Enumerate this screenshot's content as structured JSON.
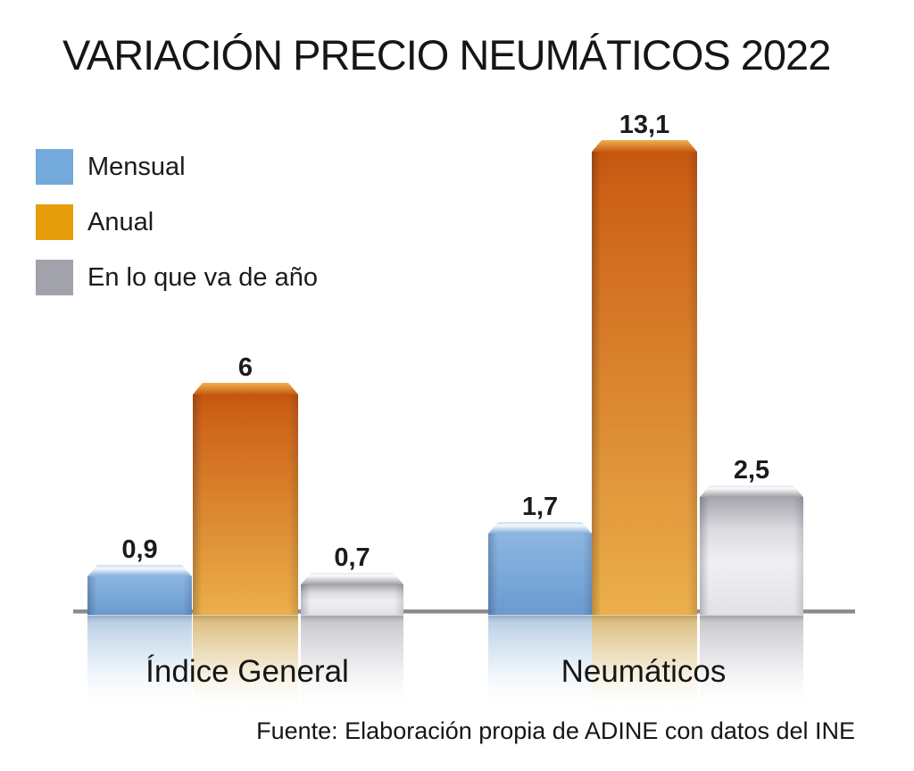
{
  "title": "VARIACIÓN PRECIO NEUMÁTICOS 2022",
  "legend": [
    {
      "label": "Mensual",
      "color": "#74A9DB"
    },
    {
      "label": "Anual",
      "color": "#E59D0B"
    },
    {
      "label": "En lo que va de año",
      "color": "#A2A2AA"
    }
  ],
  "source": "Fuente: Elaboración propia de ADINE con datos del INE",
  "chart_data": {
    "type": "bar",
    "title": "VARIACIÓN PRECIO NEUMÁTICOS 2022",
    "categories": [
      "Índice General",
      "Neumáticos"
    ],
    "series": [
      {
        "name": "Mensual",
        "color": "#74A9DB",
        "values": [
          0.9,
          1.7
        ],
        "labels": [
          "0,9",
          "1,7"
        ]
      },
      {
        "name": "Anual",
        "color": "#E59D0B",
        "values": [
          6,
          13.1
        ],
        "labels": [
          "6",
          "13,1"
        ]
      },
      {
        "name": "En lo que va de año",
        "color": "#A2A2AA",
        "values": [
          0.7,
          2.5
        ],
        "labels": [
          "0,7",
          "2,5"
        ]
      }
    ],
    "ylim": [
      0,
      13.1
    ],
    "xlabel": "",
    "ylabel": "",
    "grid": false,
    "legend_position": "top-left",
    "value_label_decimal_separator": ",",
    "style": "3d-bars-with-reflection"
  }
}
